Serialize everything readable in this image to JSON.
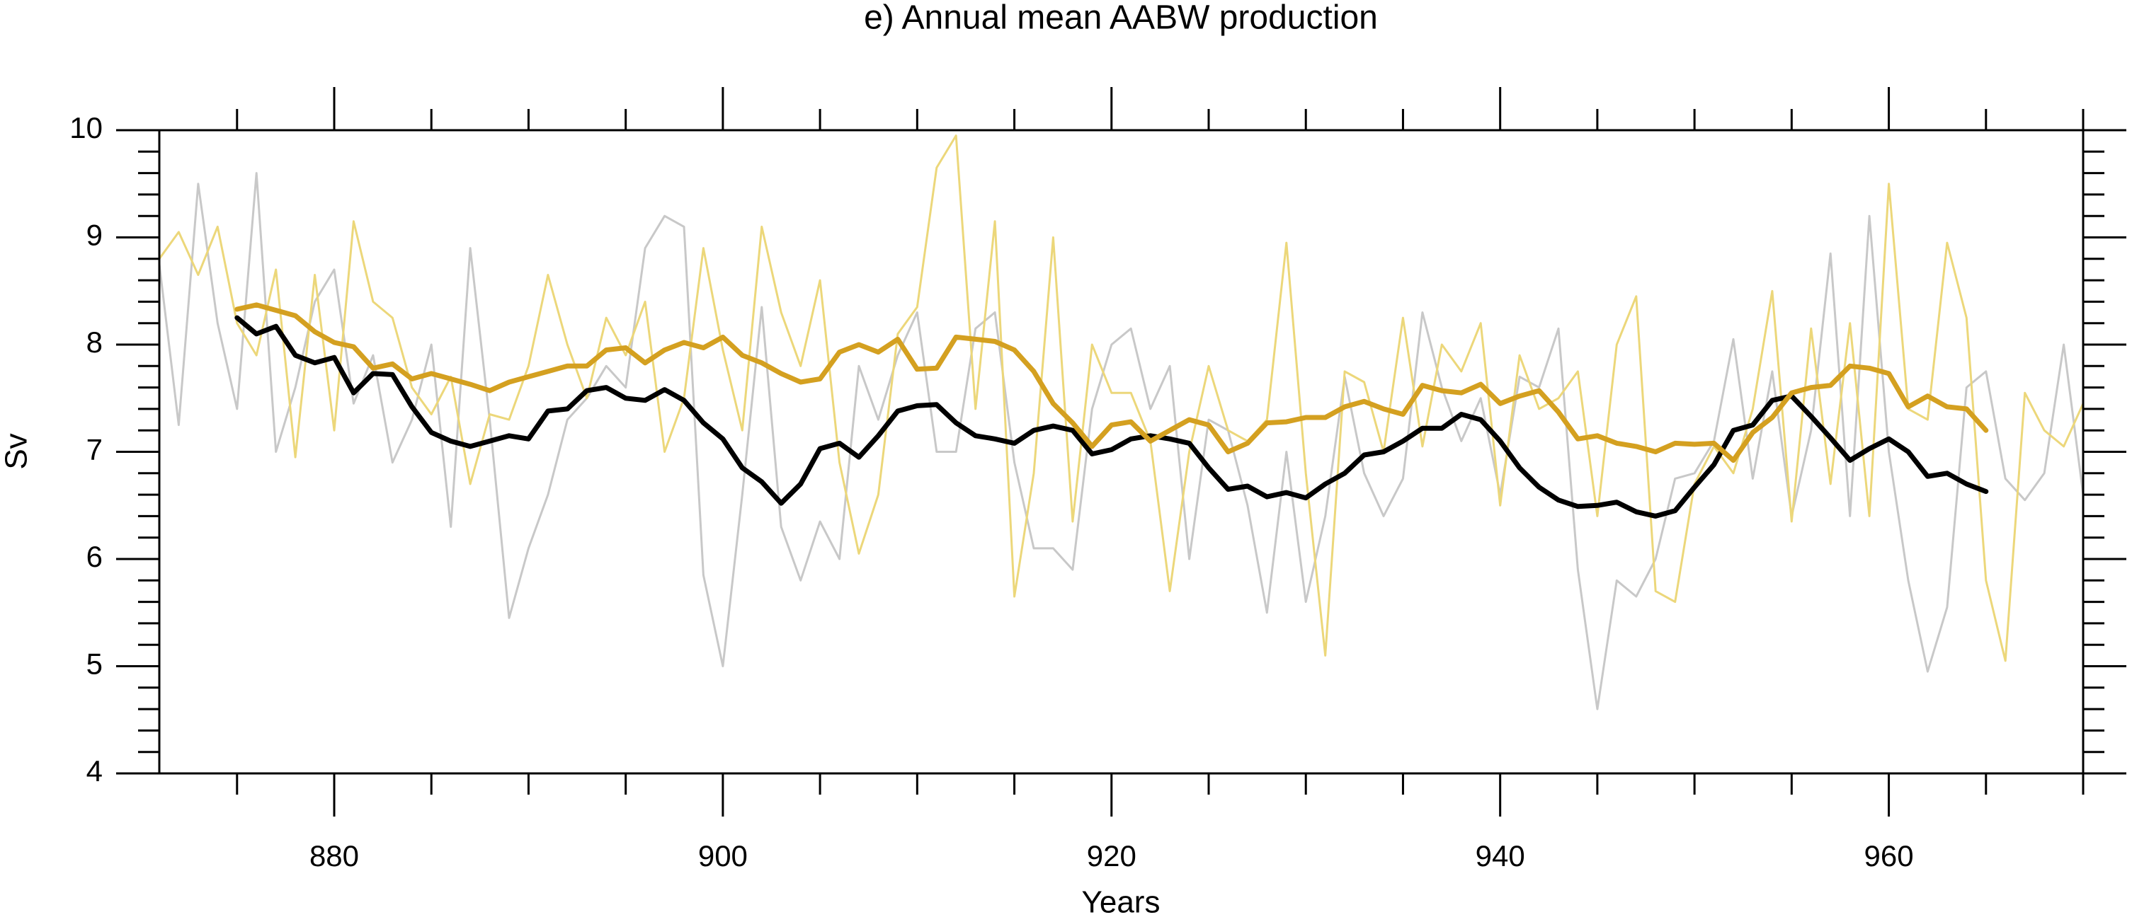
{
  "chart_data": {
    "type": "line",
    "title": "e) Annual mean AABW production",
    "xlabel": "Years",
    "ylabel": "Sv",
    "xlim": [
      871,
      970
    ],
    "xticks": [
      880,
      900,
      920,
      940,
      960
    ],
    "xminorticks": [
      875,
      885,
      890,
      895,
      905,
      910,
      915,
      925,
      930,
      935,
      945,
      950,
      955,
      965,
      970
    ],
    "ylim": [
      4,
      10
    ],
    "yticks": [
      4,
      5,
      6,
      7,
      8,
      9,
      10
    ],
    "yminorticks": [
      4.2,
      4.4,
      4.6,
      4.8,
      5.2,
      5.4,
      5.6,
      5.8,
      6.2,
      6.4,
      6.6,
      6.8,
      7.2,
      7.4,
      7.6,
      7.8,
      8.2,
      8.4,
      8.6,
      8.8,
      9.2,
      9.4,
      9.6,
      9.8
    ],
    "series": [
      {
        "color": "#c8c8c8",
        "width": 3,
        "x": [
          871,
          872,
          873,
          874,
          875,
          876,
          877,
          878,
          879,
          880,
          881,
          882,
          883,
          884,
          885,
          886,
          887,
          888,
          889,
          890,
          891,
          892,
          893,
          894,
          895,
          896,
          897,
          898,
          899,
          900,
          901,
          902,
          903,
          904,
          905,
          906,
          907,
          908,
          909,
          910,
          911,
          912,
          913,
          914,
          915,
          916,
          917,
          918,
          919,
          920,
          921,
          922,
          923,
          924,
          925,
          926,
          927,
          928,
          929,
          930,
          931,
          932,
          933,
          934,
          935,
          936,
          937,
          938,
          939,
          940,
          941,
          942,
          943,
          944,
          945,
          946,
          947,
          948,
          949,
          950,
          951,
          952,
          953,
          954,
          955,
          956,
          957,
          958,
          959,
          960,
          961,
          962,
          963,
          964,
          965,
          966,
          967,
          968,
          969,
          970
        ],
        "values": [
          8.75,
          7.25,
          9.5,
          8.2,
          7.4,
          9.6,
          7.0,
          7.6,
          8.4,
          8.7,
          7.45,
          7.9,
          6.9,
          7.3,
          8.0,
          6.3,
          8.9,
          7.3,
          5.45,
          6.1,
          6.6,
          7.3,
          7.5,
          7.8,
          7.6,
          8.9,
          9.2,
          9.1,
          5.85,
          5.0,
          6.6,
          8.35,
          6.3,
          5.8,
          6.35,
          6.0,
          7.8,
          7.3,
          7.9,
          8.3,
          7.0,
          7.0,
          8.15,
          8.3,
          6.9,
          6.1,
          6.1,
          5.9,
          7.4,
          8.0,
          8.15,
          7.4,
          7.8,
          6.0,
          7.3,
          7.2,
          6.5,
          5.5,
          7.0,
          5.6,
          6.4,
          7.7,
          6.8,
          6.4,
          6.75,
          8.3,
          7.6,
          7.1,
          7.5,
          6.6,
          7.7,
          7.6,
          8.15,
          5.9,
          4.6,
          5.8,
          5.65,
          6.0,
          6.75,
          6.8,
          7.1,
          8.05,
          6.75,
          7.75,
          6.4,
          7.2,
          8.85,
          6.4,
          9.2,
          7.0,
          5.8,
          4.95,
          5.55,
          7.6,
          7.75,
          6.75,
          6.55,
          6.8,
          8.0,
          6.6
        ]
      },
      {
        "color": "#ecd77a",
        "width": 3,
        "x": [
          871,
          872,
          873,
          874,
          875,
          876,
          877,
          878,
          879,
          880,
          881,
          882,
          883,
          884,
          885,
          886,
          887,
          888,
          889,
          890,
          891,
          892,
          893,
          894,
          895,
          896,
          897,
          898,
          899,
          900,
          901,
          902,
          903,
          904,
          905,
          906,
          907,
          908,
          909,
          910,
          911,
          912,
          913,
          914,
          915,
          916,
          917,
          918,
          919,
          920,
          921,
          922,
          923,
          924,
          925,
          926,
          927,
          928,
          929,
          930,
          931,
          932,
          933,
          934,
          935,
          936,
          937,
          938,
          939,
          940,
          941,
          942,
          943,
          944,
          945,
          946,
          947,
          948,
          949,
          950,
          951,
          952,
          953,
          954,
          955,
          956,
          957,
          958,
          959,
          960,
          961,
          962,
          963,
          964,
          965,
          966,
          967,
          968,
          969,
          970
        ],
        "values": [
          8.8,
          9.05,
          8.65,
          9.1,
          8.2,
          7.9,
          8.7,
          6.95,
          8.65,
          7.2,
          9.15,
          8.4,
          8.25,
          7.6,
          7.35,
          7.7,
          6.7,
          7.35,
          7.3,
          7.8,
          8.65,
          8.0,
          7.5,
          8.25,
          7.9,
          8.4,
          7.0,
          7.5,
          8.9,
          7.95,
          7.2,
          9.1,
          8.3,
          7.8,
          8.6,
          6.9,
          6.05,
          6.6,
          8.1,
          8.35,
          9.65,
          9.95,
          7.4,
          9.15,
          5.65,
          6.8,
          9.0,
          6.35,
          8.0,
          7.55,
          7.55,
          7.1,
          5.7,
          7.0,
          7.8,
          7.2,
          7.1,
          7.3,
          8.95,
          6.8,
          5.1,
          7.75,
          7.65,
          7.0,
          8.25,
          7.05,
          8.0,
          7.75,
          8.2,
          6.5,
          7.9,
          7.4,
          7.5,
          7.75,
          6.4,
          8.0,
          8.45,
          5.7,
          5.6,
          6.7,
          7.05,
          6.8,
          7.4,
          8.5,
          6.35,
          8.15,
          6.7,
          8.2,
          6.4,
          9.5,
          7.4,
          7.3,
          8.95,
          8.25,
          5.8,
          5.05,
          7.55,
          7.2,
          7.05,
          7.45
        ]
      },
      {
        "color": "#000000",
        "width": 7,
        "x": [
          875,
          876,
          877,
          878,
          879,
          880,
          881,
          882,
          883,
          884,
          885,
          886,
          887,
          888,
          889,
          890,
          891,
          892,
          893,
          894,
          895,
          896,
          897,
          898,
          899,
          900,
          901,
          902,
          903,
          904,
          905,
          906,
          907,
          908,
          909,
          910,
          911,
          912,
          913,
          914,
          915,
          916,
          917,
          918,
          919,
          920,
          921,
          922,
          923,
          924,
          925,
          926,
          927,
          928,
          929,
          930,
          931,
          932,
          933,
          934,
          935,
          936,
          937,
          938,
          939,
          940,
          941,
          942,
          943,
          944,
          945,
          946,
          947,
          948,
          949,
          950,
          951,
          952,
          953,
          954,
          955,
          956,
          957,
          958,
          959,
          960,
          961,
          962,
          963,
          964,
          965
        ],
        "values": [
          8.25,
          8.1,
          8.17,
          7.9,
          7.83,
          7.88,
          7.55,
          7.73,
          7.72,
          7.42,
          7.18,
          7.1,
          7.05,
          7.1,
          7.15,
          7.12,
          7.38,
          7.4,
          7.57,
          7.6,
          7.5,
          7.48,
          7.58,
          7.48,
          7.27,
          7.12,
          6.85,
          6.72,
          6.52,
          6.7,
          7.03,
          7.08,
          6.95,
          7.15,
          7.38,
          7.43,
          7.44,
          7.27,
          7.15,
          7.12,
          7.08,
          7.2,
          7.24,
          7.2,
          6.98,
          7.02,
          7.12,
          7.15,
          7.12,
          7.08,
          6.85,
          6.65,
          6.68,
          6.58,
          6.62,
          6.57,
          6.7,
          6.8,
          6.97,
          7.0,
          7.1,
          7.22,
          7.22,
          7.35,
          7.3,
          7.1,
          6.85,
          6.67,
          6.55,
          6.49,
          6.5,
          6.53,
          6.44,
          6.4,
          6.45,
          6.67,
          6.88,
          7.2,
          7.25,
          7.48,
          7.52,
          7.33,
          7.13,
          6.92,
          7.03,
          7.12,
          7.0,
          6.77,
          6.8,
          6.7,
          6.63
        ]
      },
      {
        "color": "#d4a020",
        "width": 7,
        "x": [
          875,
          876,
          877,
          878,
          879,
          880,
          881,
          882,
          883,
          884,
          885,
          886,
          887,
          888,
          889,
          890,
          891,
          892,
          893,
          894,
          895,
          896,
          897,
          898,
          899,
          900,
          901,
          902,
          903,
          904,
          905,
          906,
          907,
          908,
          909,
          910,
          911,
          912,
          913,
          914,
          915,
          916,
          917,
          918,
          919,
          920,
          921,
          922,
          923,
          924,
          925,
          926,
          927,
          928,
          929,
          930,
          931,
          932,
          933,
          934,
          935,
          936,
          937,
          938,
          939,
          940,
          941,
          942,
          943,
          944,
          945,
          946,
          947,
          948,
          949,
          950,
          951,
          952,
          953,
          954,
          955,
          956,
          957,
          958,
          959,
          960,
          961,
          962,
          963,
          964,
          965
        ],
        "values": [
          8.33,
          8.37,
          8.32,
          8.27,
          8.12,
          8.02,
          7.98,
          7.78,
          7.82,
          7.68,
          7.73,
          7.68,
          7.63,
          7.57,
          7.65,
          7.7,
          7.75,
          7.8,
          7.8,
          7.95,
          7.97,
          7.83,
          7.95,
          8.02,
          7.97,
          8.07,
          7.9,
          7.83,
          7.73,
          7.65,
          7.68,
          7.93,
          8.0,
          7.93,
          8.05,
          7.77,
          7.78,
          8.07,
          8.05,
          8.03,
          7.95,
          7.75,
          7.45,
          7.27,
          7.05,
          7.25,
          7.28,
          7.1,
          7.2,
          7.3,
          7.25,
          7.0,
          7.08,
          7.27,
          7.28,
          7.32,
          7.32,
          7.42,
          7.47,
          7.4,
          7.35,
          7.62,
          7.57,
          7.55,
          7.63,
          7.45,
          7.52,
          7.57,
          7.37,
          7.12,
          7.15,
          7.08,
          7.05,
          7.0,
          7.08,
          7.07,
          7.08,
          6.92,
          7.18,
          7.32,
          7.55,
          7.6,
          7.62,
          7.8,
          7.78,
          7.73,
          7.42,
          7.52,
          7.42,
          7.4,
          7.2
        ]
      }
    ]
  }
}
